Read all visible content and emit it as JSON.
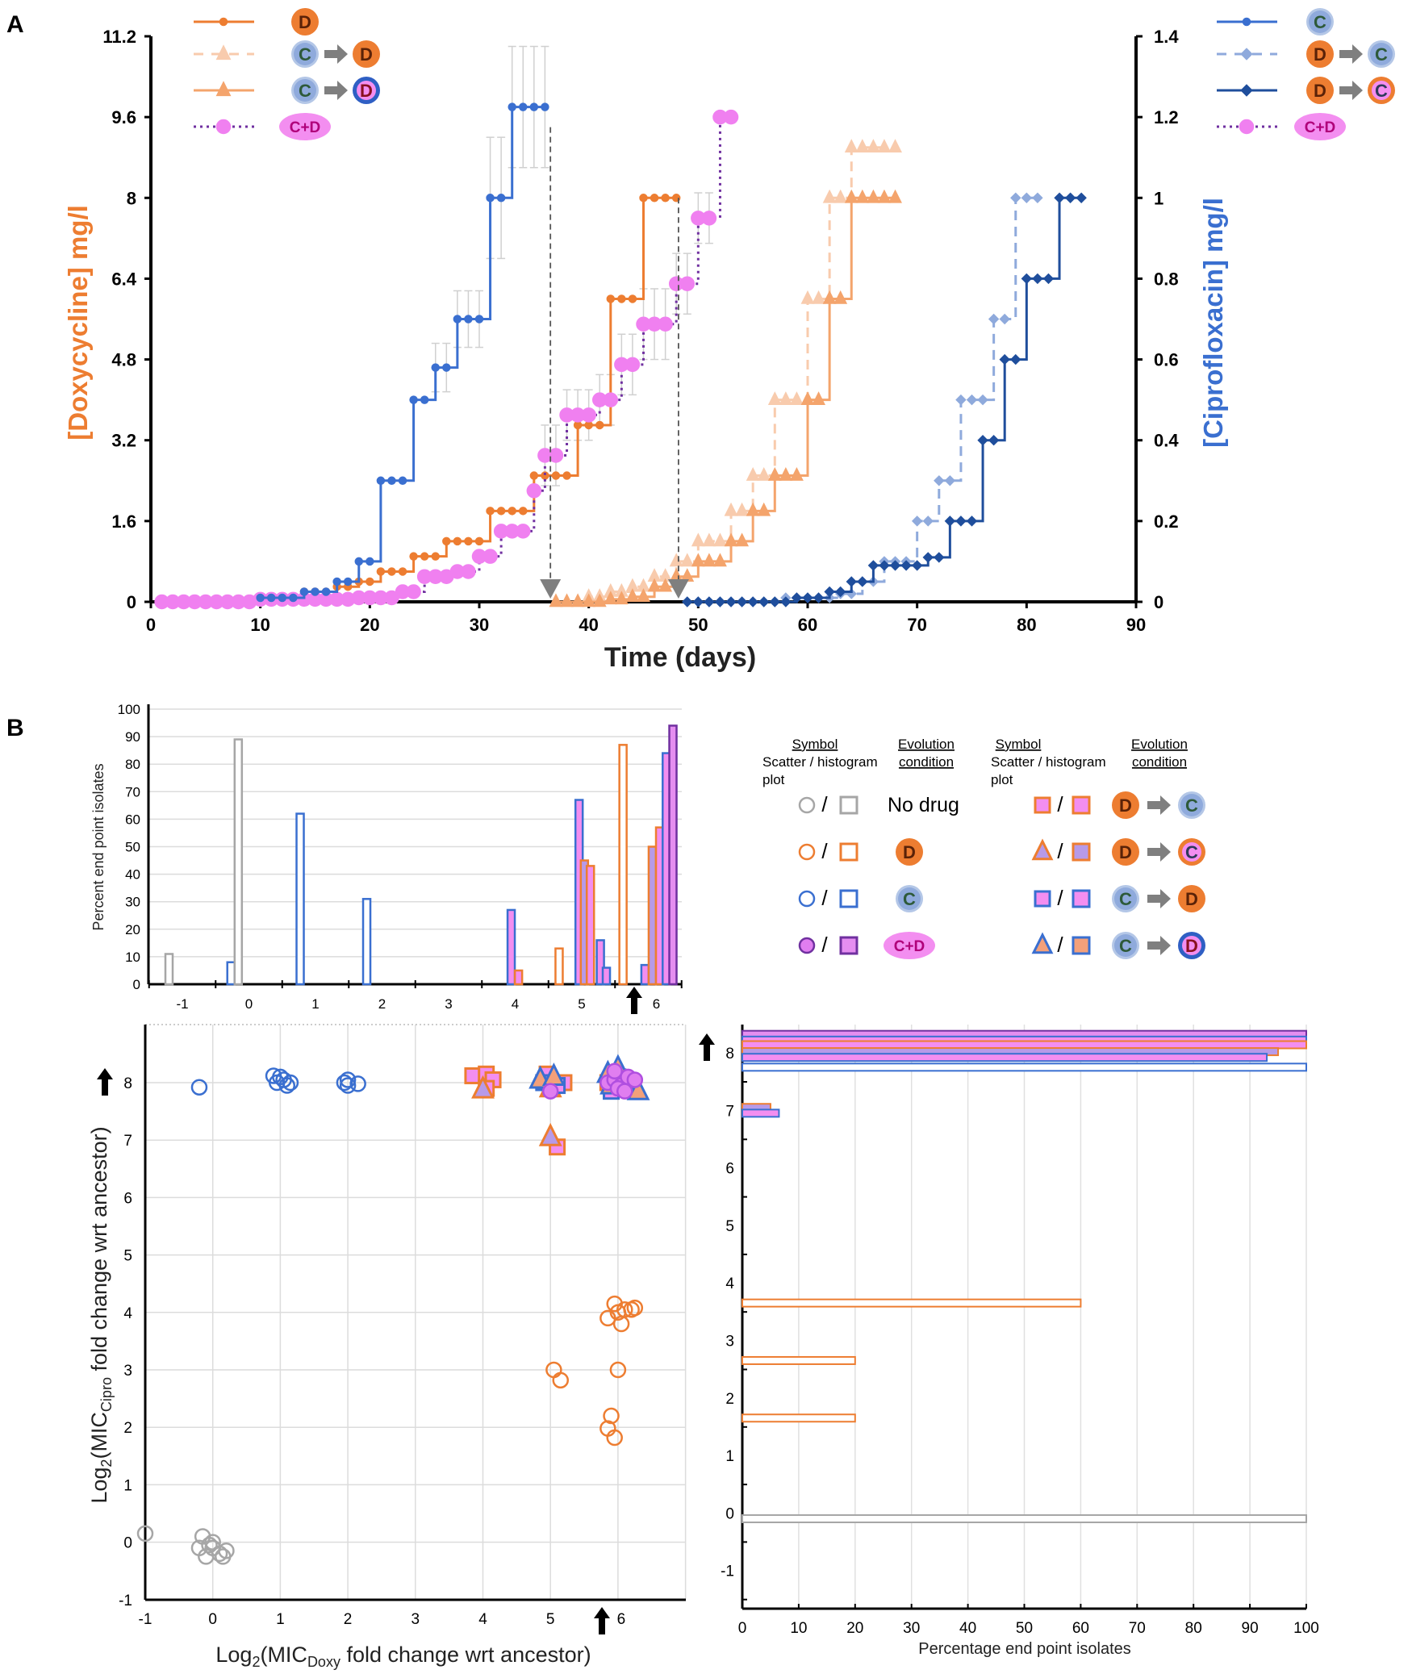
{
  "colors": {
    "doxy_orange": "#ed7d31",
    "light_orange": "#f8cbad",
    "mid_orange": "#f4a46c",
    "cipro_blue": "#3a6fd0",
    "light_blue": "#8faadc",
    "navy": "#1f4e9c",
    "pink": "#f080f0",
    "purple": "#7030a0",
    "gray": "#a6a6a6"
  },
  "panel_labels": {
    "a": "A",
    "b": "B"
  },
  "legend_tokens": {
    "D": "D",
    "C": "C",
    "CD": "C+D"
  },
  "chart_data": [
    {
      "id": "A",
      "type": "line",
      "xlabel": "Time (days)",
      "ylabel_left": "[Doxycycline] mg/l",
      "ylabel_right": "[Ciprofloxacin] mg/l",
      "xlim": [
        0,
        90
      ],
      "ylim_left": [
        0,
        11.2
      ],
      "ylim_right": [
        0,
        1.4
      ],
      "xticks": [
        "0",
        "10",
        "20",
        "30",
        "40",
        "50",
        "60",
        "70",
        "80",
        "90"
      ],
      "yticks_left": [
        "0",
        "1.6",
        "3.2",
        "4.8",
        "6.4",
        "8",
        "9.6",
        "11.2"
      ],
      "yticks_right": [
        "0",
        "0.2",
        "0.4",
        "0.6",
        "0.8",
        "1",
        "1.2",
        "1.4"
      ],
      "series": [
        {
          "key": "D",
          "axis": "left",
          "color": "#ed7d31",
          "style": "solid",
          "marker": "circle",
          "end_day": 48,
          "steps": [
            [
              10,
              0.05
            ],
            [
              14,
              0.2
            ],
            [
              17,
              0.3
            ],
            [
              19,
              0.4
            ],
            [
              21,
              0.6
            ],
            [
              24,
              0.9
            ],
            [
              27,
              1.2
            ],
            [
              31,
              1.8
            ],
            [
              35,
              2.5
            ],
            [
              39,
              3.5
            ],
            [
              42,
              6.0
            ],
            [
              45,
              8.0
            ]
          ]
        },
        {
          "key": "C_to_D",
          "axis": "left",
          "color": "#f8cbad",
          "style": "dashed",
          "marker": "triangle",
          "end_day": 68,
          "steps": [
            [
              37,
              0
            ],
            [
              40,
              0.1
            ],
            [
              42,
              0.2
            ],
            [
              44,
              0.3
            ],
            [
              46,
              0.5
            ],
            [
              48,
              0.8
            ],
            [
              50,
              1.2
            ],
            [
              53,
              1.8
            ],
            [
              55,
              2.5
            ],
            [
              57,
              4.0
            ],
            [
              60,
              6.0
            ],
            [
              62,
              8.0
            ],
            [
              64,
              9.0
            ]
          ]
        },
        {
          "key": "C_to_Dring",
          "axis": "left",
          "color": "#f4a46c",
          "style": "solid",
          "marker": "triangle",
          "end_day": 68,
          "steps": [
            [
              37,
              0
            ],
            [
              42,
              0.05
            ],
            [
              44,
              0.1
            ],
            [
              46,
              0.3
            ],
            [
              48,
              0.5
            ],
            [
              50,
              0.8
            ],
            [
              53,
              1.2
            ],
            [
              55,
              1.8
            ],
            [
              57,
              2.5
            ],
            [
              60,
              4.0
            ],
            [
              62,
              6.0
            ],
            [
              64,
              8.0
            ]
          ]
        },
        {
          "key": "C_plus_D",
          "axis": "left",
          "color": "#f080f0",
          "line_color": "#7030a0",
          "style": "dotted",
          "marker": "bigcircle",
          "end_day": 53,
          "steps": [
            [
              1,
              0
            ],
            [
              10,
              0.05
            ],
            [
              19,
              0.08
            ],
            [
              23,
              0.2
            ],
            [
              25,
              0.5
            ],
            [
              28,
              0.6
            ],
            [
              30,
              0.9
            ],
            [
              32,
              1.4
            ],
            [
              35,
              2.2
            ],
            [
              36,
              2.9
            ],
            [
              38,
              3.7
            ],
            [
              41,
              4.0
            ],
            [
              43,
              4.7
            ],
            [
              45,
              5.5
            ],
            [
              48,
              6.3
            ],
            [
              50,
              7.6
            ],
            [
              52,
              9.6
            ]
          ],
          "errors": [
            [
              36,
              0.6
            ],
            [
              38,
              0.5
            ],
            [
              41,
              0.5
            ],
            [
              43,
              0.6
            ],
            [
              45,
              0.7
            ],
            [
              48,
              0.6
            ],
            [
              50,
              0.5
            ]
          ]
        },
        {
          "key": "C",
          "axis": "right",
          "color": "#3a6fd0",
          "style": "solid",
          "marker": "circle",
          "end_day": 36,
          "steps": [
            [
              10,
              0.01
            ],
            [
              14,
              0.025
            ],
            [
              17,
              0.05
            ],
            [
              19,
              0.1
            ],
            [
              21,
              0.3
            ],
            [
              24,
              0.5
            ],
            [
              26,
              0.58
            ],
            [
              28,
              0.7
            ],
            [
              31,
              1.0
            ],
            [
              33,
              1.225
            ]
          ],
          "errors": [
            [
              26,
              0.06
            ],
            [
              28,
              0.07
            ],
            [
              31,
              0.15
            ],
            [
              33,
              0.15
            ]
          ]
        },
        {
          "key": "D_to_C",
          "axis": "right",
          "color": "#8faadc",
          "style": "dashed",
          "marker": "diamond",
          "end_day": 81,
          "steps": [
            [
              49,
              0
            ],
            [
              58,
              0.01
            ],
            [
              63,
              0.02
            ],
            [
              65,
              0.05
            ],
            [
              67,
              0.1
            ],
            [
              70,
              0.2
            ],
            [
              72,
              0.3
            ],
            [
              74,
              0.5
            ],
            [
              77,
              0.7
            ],
            [
              79,
              1.0
            ]
          ]
        },
        {
          "key": "D_to_Cring",
          "axis": "right",
          "color": "#1f4e9c",
          "style": "solid",
          "marker": "diamond",
          "end_day": 85,
          "steps": [
            [
              49,
              0
            ],
            [
              59,
              0.01
            ],
            [
              62,
              0.025
            ],
            [
              64,
              0.05
            ],
            [
              66,
              0.09
            ],
            [
              71,
              0.11
            ],
            [
              73,
              0.2
            ],
            [
              76,
              0.4
            ],
            [
              78,
              0.6
            ],
            [
              80,
              0.8
            ],
            [
              83,
              1.0
            ]
          ]
        }
      ],
      "transfer_arrows": [
        {
          "day": 36.5,
          "from": 9.4
        },
        {
          "day": 48.2,
          "from": 8.0
        }
      ],
      "legend_left": [
        {
          "series": "D",
          "tokens": [
            "D"
          ]
        },
        {
          "series": "C_to_D",
          "tokens": [
            "C",
            "arrow",
            "D"
          ]
        },
        {
          "series": "C_to_Dring",
          "tokens": [
            "C",
            "arrow",
            "Dring"
          ]
        },
        {
          "series": "C_plus_D",
          "tokens": [
            "CD"
          ]
        }
      ],
      "legend_right": [
        {
          "series": "C",
          "tokens": [
            "C"
          ]
        },
        {
          "series": "D_to_C",
          "tokens": [
            "D",
            "arrow",
            "C"
          ]
        },
        {
          "series": "D_to_Cring",
          "tokens": [
            "D",
            "arrow",
            "Cring"
          ]
        },
        {
          "series": "C_plus_D",
          "tokens": [
            "CD"
          ]
        }
      ]
    },
    {
      "id": "B-histogram",
      "type": "bar",
      "ylabel": "Percent end point isolates",
      "ylim": [
        0,
        100
      ],
      "yticks": [
        "0",
        "10",
        "20",
        "30",
        "40",
        "50",
        "60",
        "70",
        "80",
        "90",
        "100"
      ],
      "xticks": [
        "-1",
        "0",
        "1",
        "2",
        "3",
        "4",
        "5",
        "6"
      ],
      "grid": true,
      "bars": [
        [
          -1.2,
          11,
          "nodrug"
        ],
        [
          -0.27,
          8,
          "C"
        ],
        [
          -0.16,
          89,
          "nodrug"
        ],
        [
          0.77,
          62,
          "C"
        ],
        [
          1.77,
          31,
          "C"
        ],
        [
          3.94,
          27,
          "CD2"
        ],
        [
          4.05,
          5,
          "DC"
        ],
        [
          4.66,
          13,
          "D"
        ],
        [
          4.96,
          67,
          "CD2"
        ],
        [
          5.04,
          45,
          "DCp"
        ],
        [
          5.13,
          43,
          "DC"
        ],
        [
          5.28,
          16,
          "CD2"
        ],
        [
          5.37,
          6,
          "CD2"
        ],
        [
          5.62,
          87,
          "D"
        ],
        [
          5.95,
          7,
          "CD2"
        ],
        [
          6.06,
          50,
          "DCp"
        ],
        [
          6.17,
          57,
          "DC"
        ],
        [
          6.27,
          84,
          "CD2"
        ],
        [
          6.37,
          94,
          "CD"
        ]
      ]
    },
    {
      "id": "B-scatter",
      "type": "scatter",
      "xlabel_parts": [
        "Log",
        "2",
        "(MIC",
        "Doxy",
        " fold change wrt ancestor)"
      ],
      "ylabel_parts": [
        "Log",
        "2",
        "(MIC",
        "Cipro",
        " fold change wrt ancestor)"
      ],
      "xlim": [
        -1,
        7
      ],
      "ylim": [
        -1,
        9
      ],
      "xticks": [
        "-1",
        "0",
        "1",
        "2",
        "3",
        "4",
        "5",
        "6"
      ],
      "yticks": [
        "-1",
        "0",
        "1",
        "2",
        "3",
        "4",
        "5",
        "6",
        "7",
        "8"
      ],
      "grid": true,
      "points": [
        [
          -1,
          0.15,
          "nodrug"
        ],
        [
          -0.15,
          0.1,
          "nodrug"
        ],
        [
          -0.2,
          -0.1,
          "nodrug"
        ],
        [
          -0.05,
          -0.05,
          "nodrug"
        ],
        [
          0,
          -0.1,
          "nodrug"
        ],
        [
          -0.1,
          -0.25,
          "nodrug"
        ],
        [
          0.1,
          -0.2,
          "nodrug"
        ],
        [
          0.2,
          -0.15,
          "nodrug"
        ],
        [
          0.15,
          -0.25,
          "nodrug"
        ],
        [
          0,
          0.0,
          "nodrug"
        ],
        [
          -0.2,
          7.92,
          "C"
        ],
        [
          0.9,
          8.12,
          "C"
        ],
        [
          0.95,
          8.0,
          "C"
        ],
        [
          1.05,
          8.05,
          "C"
        ],
        [
          1.1,
          7.95,
          "C"
        ],
        [
          1.0,
          8.1,
          "C"
        ],
        [
          1.15,
          8.0,
          "C"
        ],
        [
          1.95,
          8.0,
          "C"
        ],
        [
          2.0,
          7.95,
          "C"
        ],
        [
          2.15,
          7.98,
          "C"
        ],
        [
          2.0,
          8.05,
          "C"
        ],
        [
          5.05,
          3.0,
          "D"
        ],
        [
          5.15,
          2.82,
          "D"
        ],
        [
          5.95,
          4.15,
          "D"
        ],
        [
          5.85,
          3.9,
          "D"
        ],
        [
          6.0,
          4.0,
          "D"
        ],
        [
          6.05,
          3.8,
          "D"
        ],
        [
          6.1,
          4.05,
          "D"
        ],
        [
          6.2,
          4.05,
          "D"
        ],
        [
          6.25,
          4.08,
          "D"
        ],
        [
          6.0,
          3.0,
          "D"
        ],
        [
          5.9,
          2.2,
          "D"
        ],
        [
          5.85,
          1.98,
          "D"
        ],
        [
          5.95,
          1.82,
          "D"
        ],
        [
          3.85,
          8.12,
          "DC"
        ],
        [
          4.05,
          8.15,
          "DC"
        ],
        [
          4.15,
          8.05,
          "DC"
        ],
        [
          4.05,
          7.9,
          "DC"
        ],
        [
          4.95,
          8.15,
          "DC"
        ],
        [
          5.2,
          8.0,
          "DC"
        ],
        [
          5.1,
          6.88,
          "DC"
        ],
        [
          5.85,
          8.0,
          "DC"
        ],
        [
          4.0,
          7.88,
          "DCp"
        ],
        [
          5.0,
          7.9,
          "DCp"
        ],
        [
          5.0,
          7.05,
          "DCp"
        ],
        [
          6.05,
          7.9,
          "DCp"
        ],
        [
          4.9,
          8.0,
          "CD2"
        ],
        [
          5.1,
          7.95,
          "CD2"
        ],
        [
          6.0,
          8.1,
          "CD2"
        ],
        [
          5.9,
          7.85,
          "CD2"
        ],
        [
          4.85,
          8.05,
          "CDp"
        ],
        [
          5.05,
          8.1,
          "CDp"
        ],
        [
          5.9,
          7.95,
          "CDp"
        ],
        [
          6.1,
          8.0,
          "CDp"
        ],
        [
          6.3,
          7.85,
          "CDp"
        ],
        [
          5.85,
          8.15,
          "CDp"
        ],
        [
          6.0,
          8.25,
          "CDp"
        ],
        [
          5.0,
          7.85,
          "CD"
        ],
        [
          5.85,
          8.0,
          "CD"
        ],
        [
          5.95,
          8.05,
          "CD"
        ],
        [
          6.05,
          7.95,
          "CD"
        ],
        [
          6.15,
          8.1,
          "CD"
        ],
        [
          6.0,
          7.9,
          "CD"
        ],
        [
          6.25,
          8.05,
          "CD"
        ],
        [
          5.95,
          8.2,
          "CD"
        ],
        [
          6.1,
          7.85,
          "CD"
        ]
      ]
    },
    {
      "id": "B-horizontal-histogram",
      "type": "bar",
      "xlabel": "Percentage end point isolates",
      "xlim": [
        0,
        100
      ],
      "xticks": [
        "0",
        "10",
        "20",
        "30",
        "40",
        "50",
        "60",
        "70",
        "80",
        "90",
        "100"
      ],
      "yticks": [
        "-1",
        "0",
        "1",
        "2",
        "3",
        "4",
        "5",
        "6",
        "7",
        "8"
      ],
      "bars": [
        [
          8.32,
          100,
          "CD"
        ],
        [
          8.22,
          100,
          "CD2"
        ],
        [
          8.14,
          100,
          "DC"
        ],
        [
          8.02,
          95,
          "DCp"
        ],
        [
          7.92,
          93,
          "CD2"
        ],
        [
          7.75,
          100,
          "C"
        ],
        [
          7.05,
          5,
          "DCp"
        ],
        [
          6.95,
          6.5,
          "CD2"
        ],
        [
          3.65,
          60,
          "D"
        ],
        [
          2.65,
          20,
          "D"
        ],
        [
          1.65,
          20,
          "D"
        ],
        [
          -0.1,
          100,
          "nodrug"
        ]
      ]
    }
  ],
  "legend_b": {
    "symbol_header": "Symbol",
    "scatter_header": "Scatter / histogram",
    "plot_header": "plot",
    "evolution_header": "Evolution",
    "condition_header": "condition",
    "slash": "/",
    "no_drug": "No drug",
    "left_rows": [
      {
        "cond": "nodrug",
        "tokens": []
      },
      {
        "cond": "D",
        "tokens": [
          "D"
        ]
      },
      {
        "cond": "C",
        "tokens": [
          "C"
        ]
      },
      {
        "cond": "CD",
        "tokens": [
          "CD"
        ]
      }
    ],
    "right_rows": [
      {
        "cond": "DC",
        "tokens": [
          "D",
          "arrow",
          "C"
        ]
      },
      {
        "cond": "DCp",
        "tokens": [
          "D",
          "arrow",
          "Cring"
        ]
      },
      {
        "cond": "CD2",
        "tokens": [
          "C",
          "arrow",
          "D"
        ]
      },
      {
        "cond": "CDp",
        "tokens": [
          "C",
          "arrow",
          "Dring"
        ]
      }
    ]
  }
}
